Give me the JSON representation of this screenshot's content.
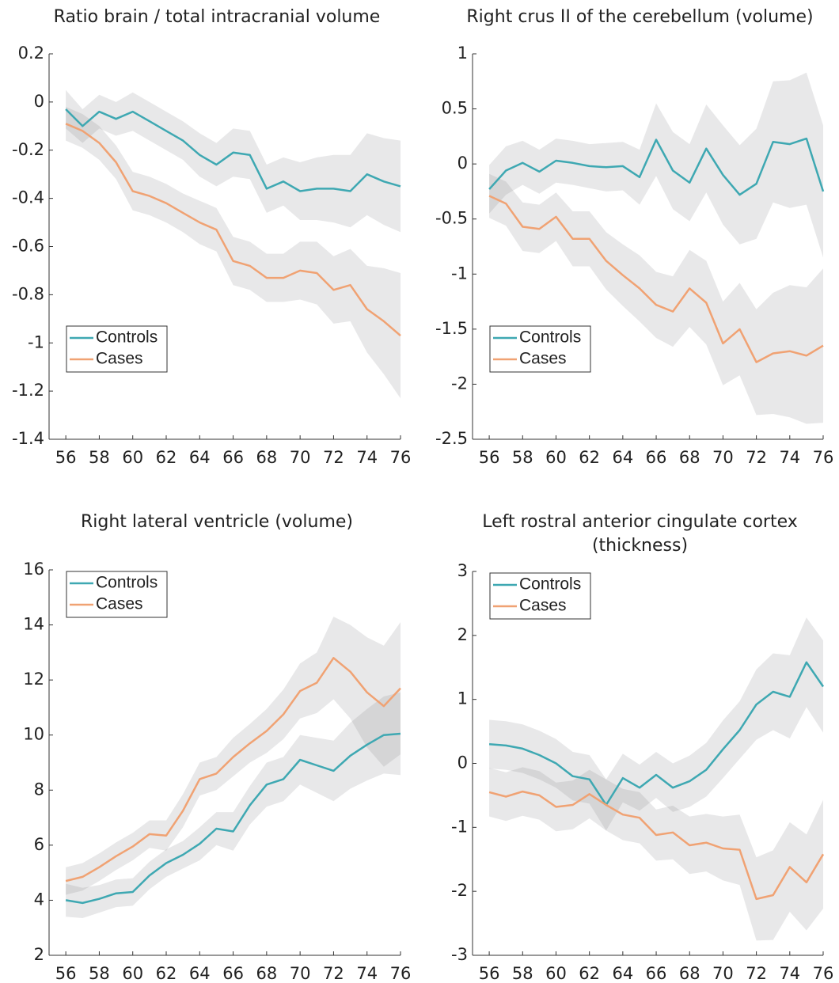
{
  "chart_data": [
    {
      "type": "line",
      "title": "Ratio brain / total intracranial volume",
      "x": [
        56,
        57,
        58,
        59,
        60,
        61,
        62,
        63,
        64,
        65,
        66,
        67,
        68,
        69,
        70,
        71,
        72,
        73,
        74,
        75,
        76
      ],
      "xlim": [
        55,
        76
      ],
      "xticks": [
        56,
        58,
        60,
        62,
        64,
        66,
        68,
        70,
        72,
        74,
        76
      ],
      "ylim": [
        -1.4,
        0.2
      ],
      "yticks": [
        -1.4,
        -1.2,
        -1,
        -0.8,
        -0.6,
        -0.4,
        -0.2,
        0,
        0.2
      ],
      "legend_position": "lower left",
      "series": [
        {
          "name": "Controls",
          "color": "#3ea8b2",
          "values": [
            -0.03,
            -0.1,
            -0.04,
            -0.07,
            -0.04,
            -0.08,
            -0.12,
            -0.16,
            -0.22,
            -0.26,
            -0.21,
            -0.22,
            -0.36,
            -0.33,
            -0.37,
            -0.36,
            -0.36,
            -0.37,
            -0.3,
            -0.33,
            -0.35
          ],
          "errors": [
            0.08,
            0.07,
            0.07,
            0.07,
            0.08,
            0.08,
            0.08,
            0.08,
            0.09,
            0.09,
            0.1,
            0.1,
            0.1,
            0.1,
            0.12,
            0.13,
            0.14,
            0.15,
            0.17,
            0.18,
            0.19
          ]
        },
        {
          "name": "Cases",
          "color": "#f0a273",
          "values": [
            -0.09,
            -0.12,
            -0.17,
            -0.25,
            -0.37,
            -0.39,
            -0.42,
            -0.46,
            -0.5,
            -0.53,
            -0.66,
            -0.68,
            -0.73,
            -0.73,
            -0.7,
            -0.71,
            -0.78,
            -0.76,
            -0.86,
            -0.91,
            -0.97
          ],
          "errors": [
            0.07,
            0.07,
            0.07,
            0.07,
            0.08,
            0.08,
            0.08,
            0.08,
            0.09,
            0.09,
            0.1,
            0.1,
            0.1,
            0.1,
            0.12,
            0.13,
            0.14,
            0.15,
            0.18,
            0.22,
            0.26
          ]
        }
      ]
    },
    {
      "type": "line",
      "title": "Right crus II of the cerebellum (volume)",
      "x": [
        56,
        57,
        58,
        59,
        60,
        61,
        62,
        63,
        64,
        65,
        66,
        67,
        68,
        69,
        70,
        71,
        72,
        73,
        74,
        75,
        76
      ],
      "xlim": [
        55,
        76
      ],
      "xticks": [
        56,
        58,
        60,
        62,
        64,
        66,
        68,
        70,
        72,
        74,
        76
      ],
      "ylim": [
        -2.5,
        1
      ],
      "yticks": [
        -2.5,
        -2,
        -1.5,
        -1,
        -0.5,
        0,
        0.5,
        1
      ],
      "legend_position": "lower left",
      "series": [
        {
          "name": "Controls",
          "color": "#3ea8b2",
          "values": [
            -0.23,
            -0.06,
            0.01,
            -0.07,
            0.03,
            0.01,
            -0.02,
            -0.03,
            -0.02,
            -0.12,
            0.22,
            -0.06,
            -0.17,
            0.14,
            -0.1,
            -0.28,
            -0.18,
            0.2,
            0.18,
            0.23,
            -0.25
          ],
          "errors": [
            0.22,
            0.22,
            0.2,
            0.2,
            0.2,
            0.2,
            0.2,
            0.22,
            0.22,
            0.25,
            0.33,
            0.35,
            0.35,
            0.4,
            0.45,
            0.45,
            0.5,
            0.55,
            0.58,
            0.6,
            0.6
          ]
        },
        {
          "name": "Cases",
          "color": "#f0a273",
          "values": [
            -0.29,
            -0.36,
            -0.57,
            -0.59,
            -0.48,
            -0.68,
            -0.68,
            -0.88,
            -1.01,
            -1.13,
            -1.28,
            -1.34,
            -1.13,
            -1.26,
            -1.63,
            -1.5,
            -1.8,
            -1.72,
            -1.7,
            -1.74,
            -1.65
          ],
          "errors": [
            0.2,
            0.2,
            0.22,
            0.22,
            0.22,
            0.25,
            0.25,
            0.26,
            0.28,
            0.3,
            0.3,
            0.32,
            0.35,
            0.38,
            0.38,
            0.42,
            0.48,
            0.55,
            0.6,
            0.62,
            0.7
          ]
        }
      ]
    },
    {
      "type": "line",
      "title": "Right lateral ventricle (volume)",
      "x": [
        56,
        57,
        58,
        59,
        60,
        61,
        62,
        63,
        64,
        65,
        66,
        67,
        68,
        69,
        70,
        71,
        72,
        73,
        74,
        75,
        76
      ],
      "xlim": [
        55,
        76
      ],
      "xticks": [
        56,
        58,
        60,
        62,
        64,
        66,
        68,
        70,
        72,
        74,
        76
      ],
      "ylim": [
        2,
        16
      ],
      "yticks": [
        2,
        4,
        6,
        8,
        10,
        12,
        14,
        16
      ],
      "legend_position": "upper left",
      "series": [
        {
          "name": "Controls",
          "color": "#3ea8b2",
          "values": [
            4.0,
            3.9,
            4.05,
            4.25,
            4.3,
            4.9,
            5.35,
            5.65,
            6.05,
            6.6,
            6.5,
            7.45,
            8.2,
            8.4,
            9.1,
            8.9,
            8.7,
            9.25,
            9.65,
            10.0,
            10.05
          ],
          "errors": [
            0.6,
            0.55,
            0.5,
            0.5,
            0.5,
            0.5,
            0.5,
            0.5,
            0.6,
            0.6,
            0.7,
            0.7,
            0.8,
            0.8,
            0.9,
            1.0,
            1.1,
            1.2,
            1.3,
            1.4,
            1.5
          ]
        },
        {
          "name": "Cases",
          "color": "#f0a273",
          "values": [
            4.7,
            4.85,
            5.2,
            5.6,
            5.95,
            6.4,
            6.35,
            7.25,
            8.4,
            8.6,
            9.2,
            9.7,
            10.15,
            10.75,
            11.6,
            11.9,
            12.8,
            12.3,
            11.55,
            11.05,
            11.7
          ],
          "errors": [
            0.5,
            0.5,
            0.5,
            0.5,
            0.5,
            0.5,
            0.55,
            0.6,
            0.6,
            0.6,
            0.7,
            0.7,
            0.8,
            0.9,
            1.0,
            1.1,
            1.5,
            1.7,
            2.0,
            2.2,
            2.4
          ]
        }
      ]
    },
    {
      "type": "line",
      "title": [
        "Left rostral anterior cingulate cortex",
        "(thickness)"
      ],
      "x": [
        56,
        57,
        58,
        59,
        60,
        61,
        62,
        63,
        64,
        65,
        66,
        67,
        68,
        69,
        70,
        71,
        72,
        73,
        74,
        75,
        76
      ],
      "xlim": [
        55,
        76
      ],
      "xticks": [
        56,
        58,
        60,
        62,
        64,
        66,
        68,
        70,
        72,
        74,
        76
      ],
      "ylim": [
        -3,
        3
      ],
      "yticks": [
        -3,
        -2,
        -1,
        0,
        1,
        2,
        3
      ],
      "legend_position": "upper left",
      "series": [
        {
          "name": "Controls",
          "color": "#3ea8b2",
          "values": [
            0.3,
            0.28,
            0.23,
            0.13,
            0.0,
            -0.2,
            -0.25,
            -0.65,
            -0.23,
            -0.38,
            -0.18,
            -0.38,
            -0.28,
            -0.1,
            0.22,
            0.52,
            0.92,
            1.12,
            1.04,
            1.58,
            1.2
          ],
          "errors": [
            0.38,
            0.38,
            0.38,
            0.38,
            0.38,
            0.38,
            0.38,
            0.4,
            0.38,
            0.36,
            0.36,
            0.38,
            0.4,
            0.42,
            0.45,
            0.45,
            0.55,
            0.6,
            0.65,
            0.7,
            0.72
          ]
        },
        {
          "name": "Cases",
          "color": "#f0a273",
          "values": [
            -0.45,
            -0.52,
            -0.44,
            -0.5,
            -0.68,
            -0.65,
            -0.48,
            -0.65,
            -0.8,
            -0.85,
            -1.12,
            -1.08,
            -1.28,
            -1.24,
            -1.33,
            -1.35,
            -2.12,
            -2.06,
            -1.62,
            -1.86,
            -1.42
          ],
          "errors": [
            0.38,
            0.38,
            0.38,
            0.38,
            0.38,
            0.38,
            0.38,
            0.4,
            0.4,
            0.4,
            0.4,
            0.42,
            0.45,
            0.45,
            0.5,
            0.55,
            0.65,
            0.7,
            0.7,
            0.75,
            0.85
          ]
        }
      ]
    }
  ]
}
